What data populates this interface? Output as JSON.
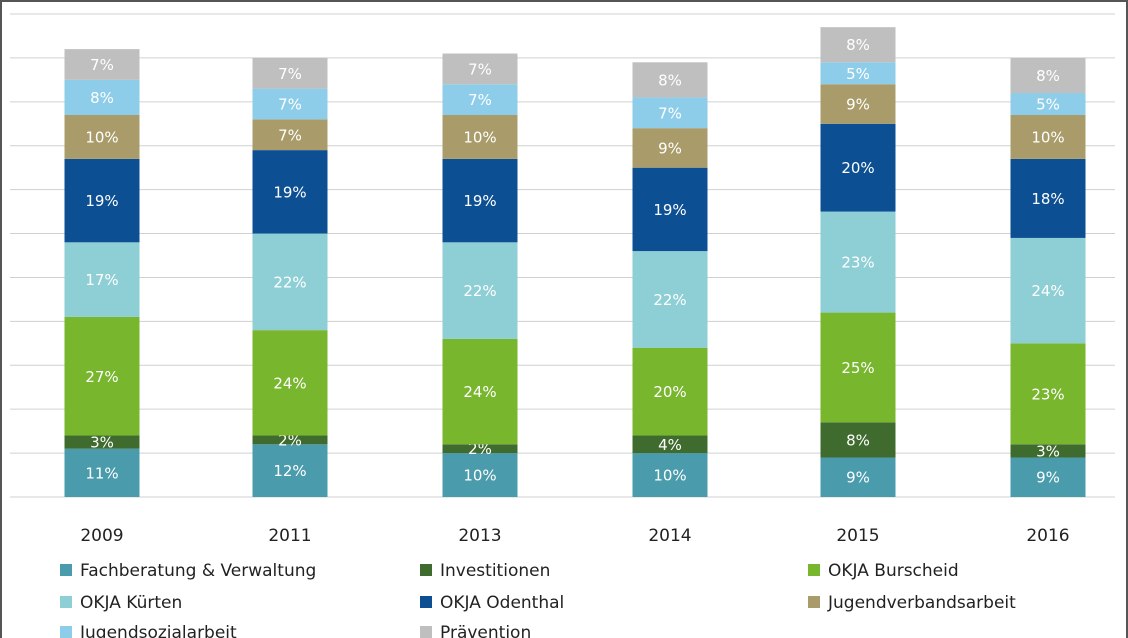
{
  "chart_data": {
    "type": "stacked_bar",
    "categories": [
      "2009",
      "2011",
      "2013",
      "2014",
      "2015",
      "2016"
    ],
    "ylim": [
      0,
      110
    ],
    "yticks": [
      0,
      10,
      20,
      30,
      40,
      50,
      60,
      70,
      80,
      90,
      100,
      110
    ],
    "grid": true,
    "series": [
      {
        "name": "Fachberatung & Verwaltung",
        "color": "#4a9bab",
        "values": [
          11,
          12,
          10,
          10,
          9,
          9
        ],
        "value_labels": [
          "11%",
          "12%",
          "10%",
          "10%",
          "9%",
          "9%"
        ]
      },
      {
        "name": "Investitionen",
        "color": "#3f6b2e",
        "values": [
          3,
          2,
          2,
          4,
          8,
          3
        ],
        "value_labels": [
          "3%",
          "2%",
          "2%",
          "4%",
          "8%",
          "3%"
        ]
      },
      {
        "name": "OKJA Burscheid",
        "color": "#78b62e",
        "values": [
          27,
          24,
          24,
          20,
          25,
          23
        ],
        "value_labels": [
          "27%",
          "24%",
          "24%",
          "20%",
          "25%",
          "23%"
        ]
      },
      {
        "name": "OKJA Kürten",
        "color": "#8ecfd6",
        "values": [
          17,
          22,
          22,
          22,
          23,
          24
        ],
        "value_labels": [
          "17%",
          "22%",
          "22%",
          "22%",
          "23%",
          "24%"
        ]
      },
      {
        "name": "OKJA Odenthal",
        "color": "#0c4f93",
        "values": [
          19,
          19,
          19,
          19,
          20,
          18
        ],
        "value_labels": [
          "19%",
          "19%",
          "19%",
          "19%",
          "20%",
          "18%"
        ]
      },
      {
        "name": "Jugendverbandsarbeit",
        "color": "#a99c6a",
        "values": [
          10,
          7,
          10,
          9,
          9,
          10
        ],
        "value_labels": [
          "10%",
          "7%",
          "10%",
          "9%",
          "9%",
          "10%"
        ]
      },
      {
        "name": "Jugendsozialarbeit",
        "color": "#8ecde9",
        "values": [
          8,
          7,
          7,
          7,
          5,
          5
        ],
        "value_labels": [
          "8%",
          "7%",
          "7%",
          "7%",
          "5%",
          "5%"
        ]
      },
      {
        "name": "Prävention",
        "color": "#bfbfbf",
        "values": [
          7,
          7,
          7,
          8,
          8,
          8
        ],
        "value_labels": [
          "7%",
          "7%",
          "7%",
          "8%",
          "8%",
          "8%"
        ]
      }
    ]
  }
}
